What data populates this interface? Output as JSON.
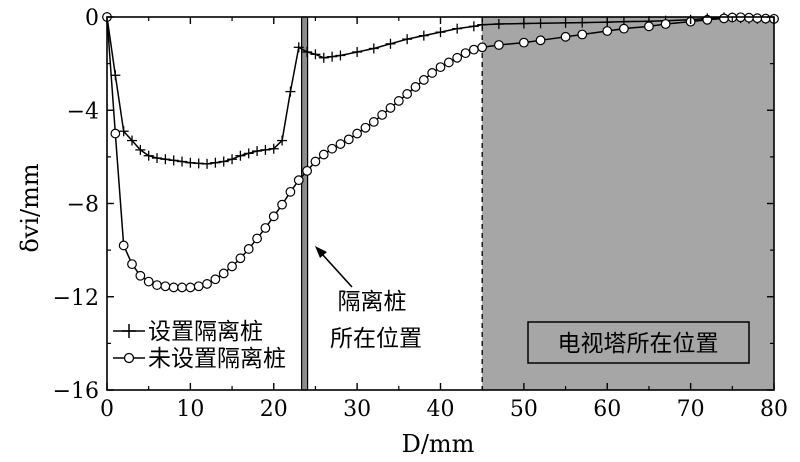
{
  "chart_data": {
    "type": "line",
    "xlabel": "D/mm",
    "ylabel": "δvi/mm",
    "xlim": [
      0,
      80
    ],
    "ylim": [
      -16,
      0
    ],
    "x_ticks": [
      0,
      10,
      20,
      30,
      40,
      50,
      60,
      70,
      80
    ],
    "y_ticks": [
      0,
      -4,
      -8,
      -12,
      -16
    ],
    "x_tick_labels": [
      "0",
      "10",
      "20",
      "30",
      "40",
      "50",
      "60",
      "70",
      "80"
    ],
    "y_tick_labels": [
      "0",
      "−4",
      "−8",
      "−12",
      "−16"
    ],
    "grid": false,
    "legend_position": "bottom-left",
    "series": [
      {
        "name": "设置隔离桩",
        "marker": "plus",
        "x": [
          0,
          1,
          2,
          3,
          4,
          5,
          6,
          7,
          8,
          9,
          10,
          11,
          12,
          13,
          14,
          15,
          16,
          17,
          18,
          19,
          20,
          21,
          22,
          23,
          24,
          25,
          26,
          27,
          28,
          30,
          32,
          34,
          36,
          38,
          40,
          42,
          44,
          45,
          47,
          50,
          52,
          55,
          57,
          60,
          62,
          65,
          67,
          70,
          72,
          74,
          75,
          76,
          77,
          78,
          79,
          80
        ],
        "y": [
          0,
          -2.5,
          -4.9,
          -5.3,
          -5.7,
          -5.95,
          -6.05,
          -6.1,
          -6.15,
          -6.2,
          -6.25,
          -6.28,
          -6.3,
          -6.25,
          -6.2,
          -6.1,
          -5.95,
          -5.85,
          -5.75,
          -5.7,
          -5.65,
          -5.3,
          -3.2,
          -1.3,
          -1.5,
          -1.6,
          -1.75,
          -1.7,
          -1.65,
          -1.5,
          -1.35,
          -1.15,
          -0.95,
          -0.8,
          -0.65,
          -0.5,
          -0.4,
          -0.33,
          -0.3,
          -0.28,
          -0.27,
          -0.25,
          -0.24,
          -0.22,
          -0.2,
          -0.18,
          -0.16,
          -0.12,
          -0.06,
          -0.02,
          -0.02,
          -0.05,
          -0.07,
          -0.08,
          -0.08,
          -0.08
        ]
      },
      {
        "name": "未设置隔离桩",
        "marker": "circle",
        "x": [
          0,
          1,
          2,
          3,
          4,
          5,
          6,
          7,
          8,
          9,
          10,
          11,
          12,
          13,
          14,
          15,
          16,
          17,
          18,
          19,
          20,
          21,
          22,
          23,
          24,
          25,
          26,
          27,
          28,
          29,
          30,
          31,
          32,
          33,
          34,
          35,
          36,
          37,
          38,
          39,
          40,
          41,
          42,
          43,
          44,
          45,
          47,
          50,
          52,
          55,
          57,
          60,
          62,
          65,
          67,
          70,
          72,
          74,
          75,
          76,
          77,
          78,
          79,
          80
        ],
        "y": [
          0,
          -5.0,
          -9.8,
          -10.6,
          -11.1,
          -11.35,
          -11.5,
          -11.55,
          -11.6,
          -11.6,
          -11.6,
          -11.55,
          -11.45,
          -11.25,
          -11.0,
          -10.7,
          -10.35,
          -9.95,
          -9.5,
          -9.05,
          -8.55,
          -8.05,
          -7.5,
          -7.0,
          -6.6,
          -6.2,
          -5.9,
          -5.65,
          -5.45,
          -5.25,
          -5.0,
          -4.75,
          -4.5,
          -4.2,
          -3.9,
          -3.6,
          -3.3,
          -3.0,
          -2.7,
          -2.4,
          -2.15,
          -1.95,
          -1.75,
          -1.55,
          -1.4,
          -1.3,
          -1.2,
          -1.1,
          -1.0,
          -0.85,
          -0.75,
          -0.6,
          -0.5,
          -0.4,
          -0.3,
          -0.2,
          -0.12,
          -0.06,
          -0.02,
          -0.01,
          -0.03,
          -0.05,
          -0.07,
          -0.08
        ]
      }
    ],
    "annotations": {
      "pile_position": 23.7,
      "pile_label_line1": "隔离桩",
      "pile_label_line2": "所在位置",
      "tower_region": [
        45,
        80
      ],
      "tower_label": "电视塔所在位置"
    }
  },
  "colors": {
    "tower_fill": "#a7a6a6",
    "pile_fill": "#8c8c8c",
    "line": "#000000"
  }
}
